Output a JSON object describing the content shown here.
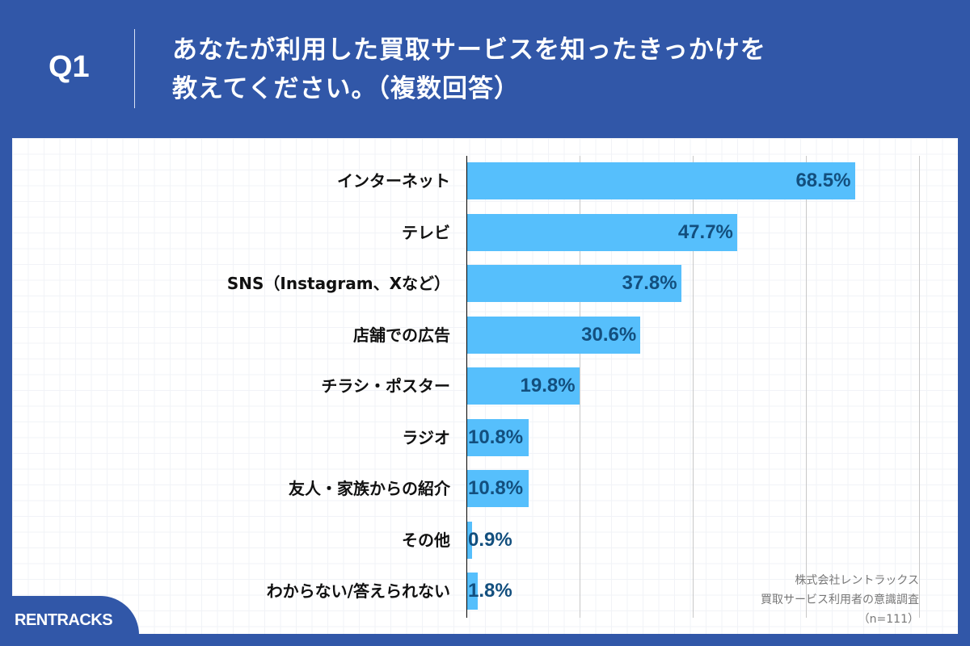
{
  "header": {
    "question_number": "Q1",
    "title": "あなたが利用した買取サービスを知ったきっかけを\n教えてください。（複数回答）"
  },
  "colors": {
    "background": "#3157a8",
    "bar": "#56bffc",
    "value_label": "#134f7e"
  },
  "chart_data": {
    "type": "bar",
    "orientation": "horizontal",
    "title": "あなたが利用した買取サービスを知ったきっかけを教えてください。（複数回答）",
    "xlabel": "",
    "ylabel": "",
    "xlim": [
      0,
      80
    ],
    "grid": true,
    "gridlines_at": [
      0,
      20,
      40,
      60,
      80
    ],
    "categories": [
      "インターネット",
      "テレビ",
      "SNS（Instagram、Xなど）",
      "店舗での広告",
      "チラシ・ポスター",
      "ラジオ",
      "友人・家族からの紹介",
      "その他",
      "わからない/答えられない"
    ],
    "values": [
      68.5,
      47.7,
      37.8,
      30.6,
      19.8,
      10.8,
      10.8,
      0.9,
      1.8
    ],
    "value_labels": [
      "68.5%",
      "47.7%",
      "37.8%",
      "30.6%",
      "19.8%",
      "10.8%",
      "10.8%",
      "0.9%",
      "1.8%"
    ],
    "unit": "%"
  },
  "source": {
    "company": "株式会社レントラックス",
    "survey": "買取サービス利用者の意識調査",
    "sample": "（n=111）"
  },
  "brand": {
    "logo_text": "RENTRACKS"
  }
}
